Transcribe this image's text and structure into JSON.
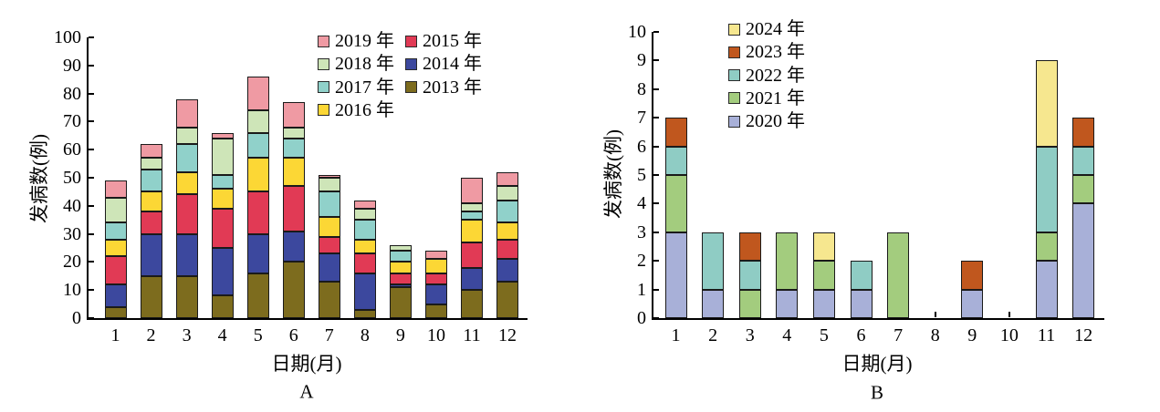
{
  "figure": {
    "background": "#ffffff",
    "axis_color": "#000000",
    "bar_outline_color": "#1a1a1a"
  },
  "chart_data": [
    {
      "id": "A",
      "type": "bar",
      "stacked": true,
      "panel_label": "A",
      "xlabel": "日期(月)",
      "ylabel": "发病数(例)",
      "ylim": [
        0,
        100
      ],
      "ytick_step": 10,
      "grid": false,
      "legend_position": "top-right-inside",
      "categories": [
        "1",
        "2",
        "3",
        "4",
        "5",
        "6",
        "7",
        "8",
        "9",
        "10",
        "11",
        "12"
      ],
      "series": [
        {
          "name": "2013年",
          "color": "#7d6c1e",
          "values": [
            4,
            15,
            15,
            8,
            16,
            20,
            13,
            3,
            11,
            5,
            10,
            13
          ]
        },
        {
          "name": "2014年",
          "color": "#3c489e",
          "values": [
            8,
            15,
            15,
            17,
            14,
            11,
            10,
            13,
            1,
            7,
            8,
            8
          ]
        },
        {
          "name": "2015年",
          "color": "#e13a55",
          "values": [
            10,
            8,
            14,
            14,
            15,
            16,
            6,
            7,
            4,
            4,
            9,
            7
          ]
        },
        {
          "name": "2016年",
          "color": "#fcd735",
          "values": [
            6,
            7,
            8,
            7,
            12,
            10,
            7,
            5,
            4,
            5,
            8,
            6
          ]
        },
        {
          "name": "2017年",
          "color": "#90d1ca",
          "values": [
            6,
            8,
            10,
            5,
            9,
            7,
            9,
            7,
            4,
            0,
            3,
            8
          ]
        },
        {
          "name": "2018年",
          "color": "#cee5b8",
          "values": [
            9,
            4,
            6,
            13,
            8,
            4,
            5,
            4,
            2,
            0,
            3,
            5
          ]
        },
        {
          "name": "2019年",
          "color": "#ef9aa3",
          "values": [
            6,
            5,
            10,
            2,
            12,
            9,
            1,
            3,
            0,
            3,
            9,
            5
          ]
        }
      ],
      "totals": [
        49,
        62,
        78,
        66,
        86,
        77,
        51,
        42,
        26,
        24,
        50,
        52
      ],
      "legend_columns": [
        [
          {
            "label": "2019 年",
            "color": "#ef9aa3"
          },
          {
            "label": "2018 年",
            "color": "#cee5b8"
          },
          {
            "label": "2017 年",
            "color": "#90d1ca"
          },
          {
            "label": "2016 年",
            "color": "#fcd735"
          }
        ],
        [
          {
            "label": "2015 年",
            "color": "#e13a55"
          },
          {
            "label": "2014 年",
            "color": "#3c489e"
          },
          {
            "label": "2013 年",
            "color": "#7d6c1e"
          }
        ]
      ]
    },
    {
      "id": "B",
      "type": "bar",
      "stacked": true,
      "panel_label": "B",
      "xlabel": "日期(月)",
      "ylabel": "发病数(例)",
      "ylim": [
        0,
        10
      ],
      "ytick_step": 1,
      "grid": false,
      "legend_position": "top-center-inside",
      "categories": [
        "1",
        "2",
        "3",
        "4",
        "5",
        "6",
        "7",
        "8",
        "9",
        "10",
        "11",
        "12"
      ],
      "series": [
        {
          "name": "2020年",
          "color": "#a8b0d8",
          "values": [
            3,
            1,
            0,
            1,
            1,
            1,
            0,
            0,
            1,
            0,
            2,
            4
          ]
        },
        {
          "name": "2021年",
          "color": "#a3cc7e",
          "values": [
            2,
            0,
            1,
            2,
            1,
            0,
            3,
            0,
            0,
            0,
            1,
            1
          ]
        },
        {
          "name": "2022年",
          "color": "#8fccc4",
          "values": [
            1,
            2,
            1,
            0,
            0,
            1,
            0,
            0,
            0,
            0,
            3,
            1
          ]
        },
        {
          "name": "2023年",
          "color": "#c0571e",
          "values": [
            1,
            0,
            1,
            0,
            0,
            0,
            0,
            0,
            1,
            0,
            0,
            1
          ]
        },
        {
          "name": "2024年",
          "color": "#f6e78f",
          "values": [
            0,
            0,
            0,
            0,
            1,
            0,
            0,
            0,
            0,
            0,
            3,
            0
          ]
        }
      ],
      "totals": [
        7,
        3,
        3,
        3,
        3,
        2,
        3,
        0,
        2,
        0,
        9,
        7
      ],
      "legend_columns": [
        [
          {
            "label": "2024 年",
            "color": "#f6e78f"
          },
          {
            "label": "2023 年",
            "color": "#c0571e"
          },
          {
            "label": "2022 年",
            "color": "#8fccc4"
          },
          {
            "label": "2021 年",
            "color": "#a3cc7e"
          },
          {
            "label": "2020 年",
            "color": "#a8b0d8"
          }
        ]
      ]
    }
  ]
}
